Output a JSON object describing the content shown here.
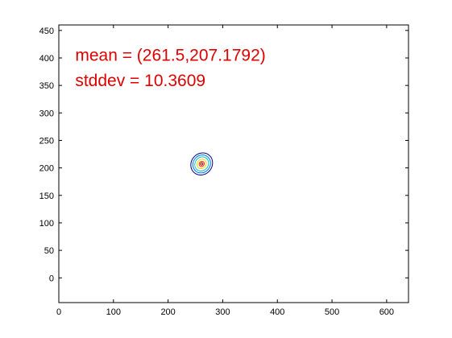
{
  "chart_data": {
    "type": "contour",
    "xlim": [
      0,
      640
    ],
    "ylim": [
      -45,
      460
    ],
    "xticks": [
      0,
      100,
      200,
      300,
      400,
      500,
      600
    ],
    "yticks": [
      0,
      50,
      100,
      150,
      200,
      250,
      300,
      350,
      400,
      450
    ],
    "grid": false,
    "legend": "none",
    "contour_center": [
      261.5,
      207.1792
    ],
    "contour_levels": [
      {
        "color": "#00008b",
        "rx": 19,
        "ry": 21
      },
      {
        "color": "#0078ff",
        "rx": 15.5,
        "ry": 17
      },
      {
        "color": "#00c8c8",
        "rx": 12,
        "ry": 13.5
      },
      {
        "color": "#ffd000",
        "rx": 8,
        "ry": 9
      },
      {
        "color": "#ff2000",
        "rx": 4.5,
        "ry": 5
      },
      {
        "color": "#8b0000",
        "rx": 2,
        "ry": 2.2
      }
    ],
    "tilt_deg": 40,
    "annotations": [
      {
        "text": "mean = (261.5,207.1792)",
        "color": "#dd0000",
        "x": 30,
        "y": 395
      },
      {
        "text": "stddev = 10.3609",
        "color": "#dd0000",
        "x": 30,
        "y": 349
      }
    ]
  }
}
